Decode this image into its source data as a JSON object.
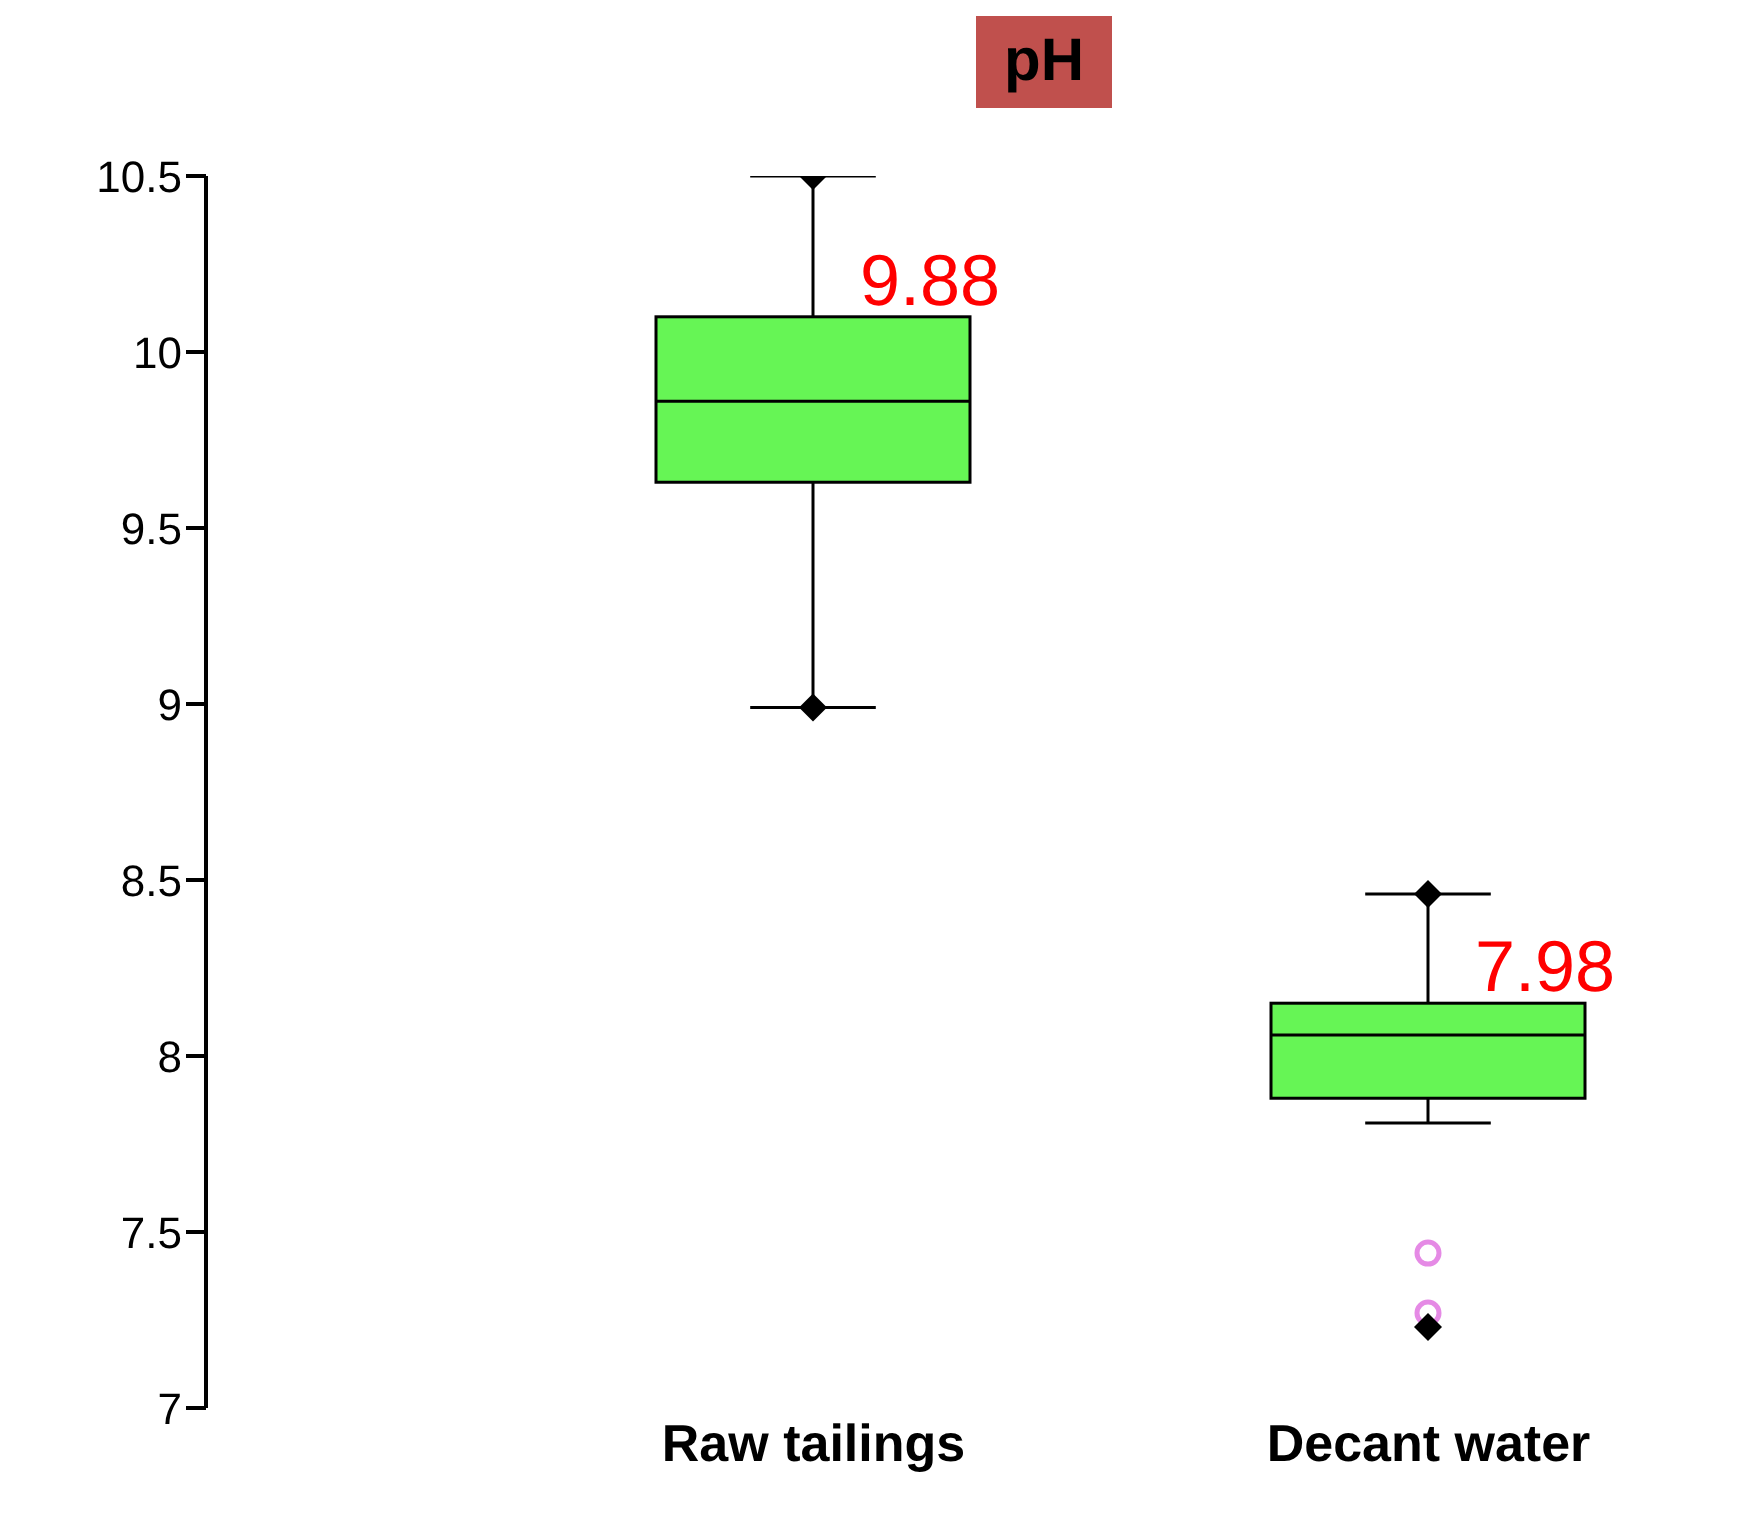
{
  "chart_data": {
    "type": "box",
    "title": "pH",
    "categories": [
      "Raw tailings",
      "Decant water"
    ],
    "series": [
      {
        "color": "#66f555",
        "boxes": [
          {
            "low": 8.99,
            "q1": 9.63,
            "median": 9.86,
            "q3": 10.1,
            "high": 10.5
          },
          {
            "low": 7.81,
            "q1": 7.88,
            "median": 8.06,
            "q3": 8.15,
            "high": 8.46,
            "outliers": [
              7.44,
              7.27
            ]
          }
        ]
      },
      {
        "type": "scatter",
        "color": "#000000",
        "marker": "diamond",
        "x": [
          "Raw tailings",
          "Raw tailings",
          "Decant water",
          "Decant water"
        ],
        "values": [
          10.5,
          8.99,
          8.46,
          7.23
        ]
      }
    ],
    "annotations": [
      "9.88",
      "7.98"
    ],
    "ylim": [
      7,
      10.5
    ],
    "yticks": [
      7,
      7.5,
      8,
      8.5,
      9,
      9.5,
      10,
      10.5
    ],
    "grid": false,
    "legend": false
  }
}
